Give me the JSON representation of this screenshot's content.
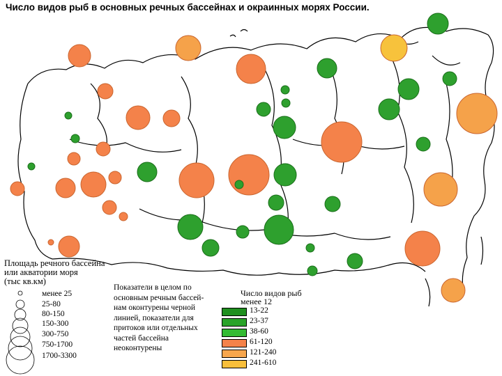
{
  "title": "Число видов рыб в основных речных бассейнах и окраинных морях России.",
  "size_legend": {
    "title_lines": [
      "Площадь речного бассейна",
      "или акватории моря",
      "(тыс кв.км)"
    ],
    "items": [
      "менее 25",
      "25-80",
      "80-150",
      "150-300",
      "300-750",
      "750-1700",
      "1700-3300"
    ]
  },
  "note_lines": [
    "Показатели в целом по",
    "основным речным бассей-",
    "нам оконтурены черной",
    "линией, показатели для",
    "притоков или отдельных",
    "частей бассейна",
    "неоконтурены"
  ],
  "color_legend": {
    "title_lines": [
      "Число видов рыб",
      "менее 12"
    ],
    "items": [
      {
        "label": "13-22",
        "color": "#1f8f1f"
      },
      {
        "label": "23-37",
        "color": "#29a329"
      },
      {
        "label": "38-60",
        "color": "#33bb33"
      },
      {
        "label": "61-120",
        "color": "#f4824a"
      },
      {
        "label": "121-240",
        "color": "#f7a64d"
      },
      {
        "label": "241-610",
        "color": "#f9bf3b"
      }
    ]
  },
  "colors": {
    "green": "#2ea02e",
    "orange": "#f4824a",
    "light_orange": "#f5a24a",
    "yellow": "#f7c23c",
    "outline": "#000000"
  }
}
